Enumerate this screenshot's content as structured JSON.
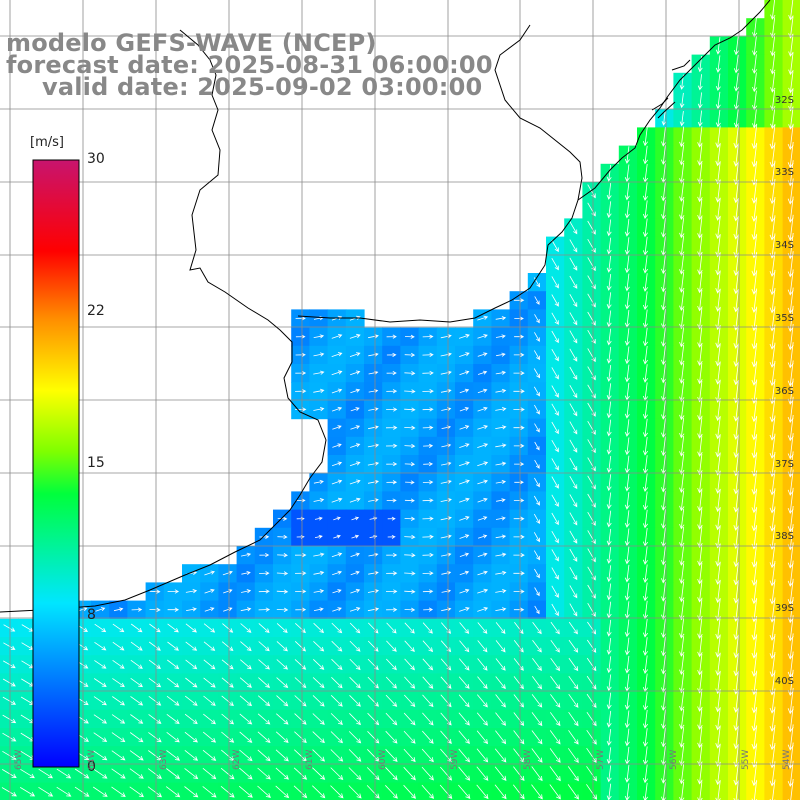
{
  "title": {
    "line1": "modelo GEFS-WAVE (NCEP)",
    "line2": "forecast date: 2025-08-31 06:00:00",
    "line3": "valid date: 2025-09-02 03:00:00"
  },
  "colorbar": {
    "unit": "[m/s]",
    "ticks": [
      "30",
      "22",
      "15",
      "8",
      "0"
    ],
    "tick_values": [
      30,
      22,
      15,
      8,
      0
    ],
    "range": [
      0,
      30
    ],
    "colors": [
      "#0000ff",
      "#00c8ff",
      "#00ff40",
      "#ffff00",
      "#ff0000",
      "#c81e82"
    ]
  },
  "lat_labels": [
    "32S",
    "33S",
    "34S",
    "35S",
    "36S",
    "37S",
    "38S",
    "39S",
    "40S"
  ],
  "lon_labels": [
    "65W",
    "64W",
    "63W",
    "62W",
    "61W",
    "60W",
    "59W",
    "58W",
    "57W",
    "56W",
    "55W",
    "54W"
  ],
  "colors": {
    "land": "#ffffff",
    "grid": "#888888",
    "coast": "#000000",
    "arrows": "#ffffff",
    "title": "#888888"
  }
}
